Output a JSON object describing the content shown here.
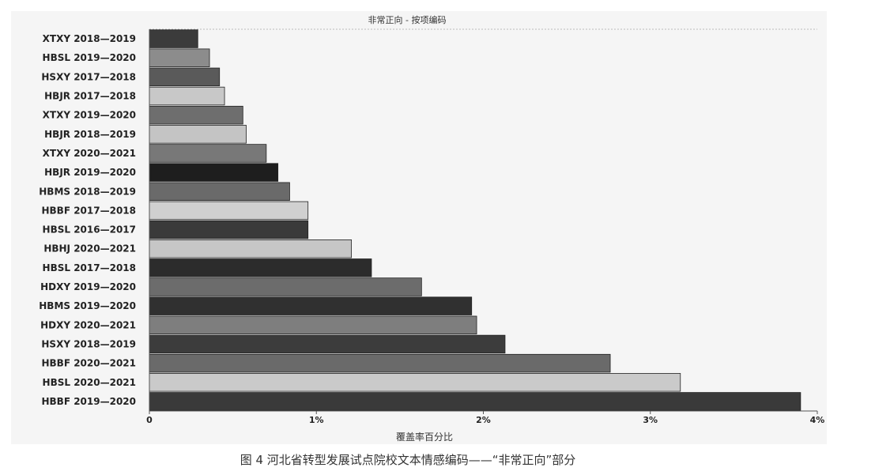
{
  "caption": "图 4  河北省转型发展试点院校文本情感编码——“非常正向”部分",
  "chart_data": {
    "type": "bar",
    "orientation": "horizontal",
    "title": "非常正向 - 按项编码",
    "xlabel": "覆盖率百分比",
    "ylabel": "",
    "xlim": [
      0,
      4
    ],
    "x_ticks": [
      "0",
      "1%",
      "2%",
      "3%",
      "4%"
    ],
    "x_tick_values": [
      0,
      1,
      2,
      3,
      4
    ],
    "unit": "%",
    "grid": false,
    "categories": [
      "XTXY 2018—2019",
      "HBSL 2019—2020",
      "HSXY 2017—2018",
      "HBJR 2017—2018",
      "XTXY 2019—2020",
      "HBJR 2018—2019",
      "XTXY 2020—2021",
      "HBJR 2019—2020",
      "HBMS 2018—2019",
      "HBBF 2017—2018",
      "HBSL 2016—2017",
      "HBHJ 2020—2021",
      "HBSL 2017—2018",
      "HDXY 2019—2020",
      "HBMS 2019—2020",
      "HDXY 2020—2021",
      "HSXY 2018—2019",
      "HBBF 2020—2021",
      "HBSL 2020—2021",
      "HBBF 2019—2020"
    ],
    "values": [
      0.29,
      0.36,
      0.42,
      0.45,
      0.56,
      0.58,
      0.7,
      0.77,
      0.84,
      0.95,
      0.95,
      1.21,
      1.33,
      1.63,
      1.93,
      1.96,
      2.13,
      2.76,
      3.18,
      3.9
    ],
    "colors": [
      "#3b3b3b",
      "#8c8c8c",
      "#5a5a5a",
      "#c8c8c8",
      "#6e6e6e",
      "#c4c4c4",
      "#787878",
      "#1e1e1e",
      "#6a6a6a",
      "#d0d0d0",
      "#3a3a3a",
      "#c6c6c6",
      "#2c2c2c",
      "#6c6c6c",
      "#303030",
      "#7e7e7e",
      "#3c3c3c",
      "#6a6a6a",
      "#cacaca",
      "#3a3a3a"
    ]
  }
}
